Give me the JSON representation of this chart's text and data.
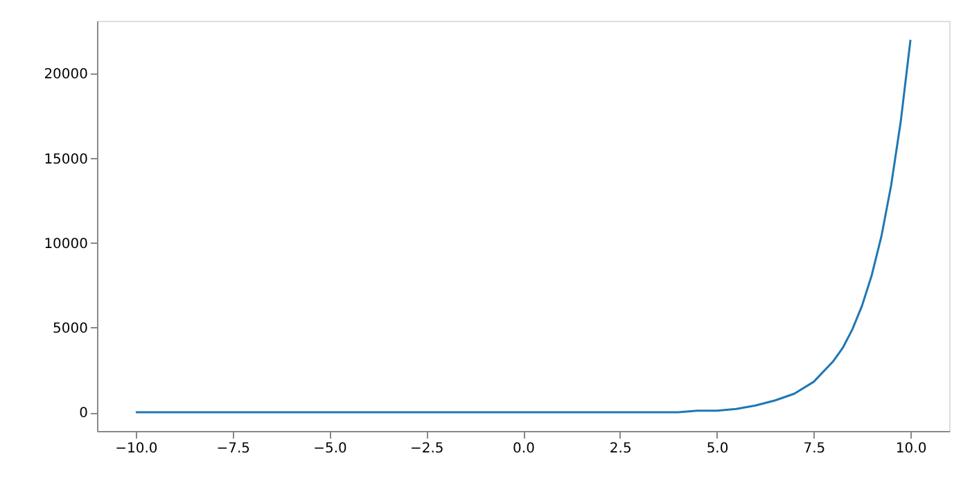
{
  "chart_data": {
    "type": "line",
    "x": [
      -10,
      -7.5,
      -5,
      -2.5,
      0,
      1,
      2,
      3,
      4,
      4.5,
      5,
      5.5,
      6,
      6.5,
      7,
      7.5,
      8,
      8.25,
      8.5,
      8.75,
      9,
      9.25,
      9.5,
      9.75,
      10
    ],
    "series": [
      {
        "color": "#1f77b4",
        "values": [
          0,
          0,
          0,
          0,
          0,
          0,
          0,
          0,
          0,
          100,
          100,
          200,
          400,
          700,
          1100,
          1800,
          3000,
          3800,
          4900,
          6300,
          8100,
          10400,
          13400,
          17200,
          22000
        ]
      }
    ],
    "xlim": [
      -11,
      11
    ],
    "ylim": [
      -1101,
      23127
    ],
    "xticks": [
      {
        "value": -10,
        "label": "−10.0"
      },
      {
        "value": -7.5,
        "label": "−7.5"
      },
      {
        "value": -5,
        "label": "−5.0"
      },
      {
        "value": -2.5,
        "label": "−2.5"
      },
      {
        "value": 0,
        "label": "0.0"
      },
      {
        "value": 2.5,
        "label": "2.5"
      },
      {
        "value": 5,
        "label": "5.0"
      },
      {
        "value": 7.5,
        "label": "7.5"
      },
      {
        "value": 10,
        "label": "10.0"
      }
    ],
    "yticks": [
      0,
      5000,
      10000,
      15000,
      20000
    ],
    "grid": false,
    "marker": "none",
    "line_style": "solid"
  }
}
